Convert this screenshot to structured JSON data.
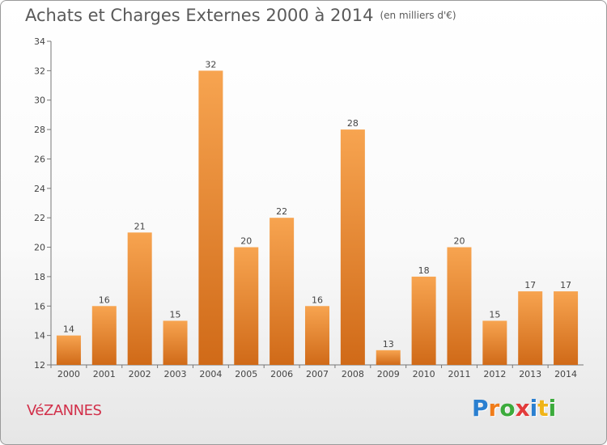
{
  "header": {
    "title": "Achats et Charges Externes 2000 à 2014",
    "unit": "(en milliers d'€)"
  },
  "footer": {
    "town": "VéZANNES",
    "brand_letters": [
      "P",
      "r",
      "o",
      "x",
      "i",
      "t",
      "i"
    ],
    "brand_colors": [
      "#2a7fd0",
      "#f07c1a",
      "#3cab3c",
      "#e23b3b",
      "#2a7fd0",
      "#f0b418",
      "#3cab3c"
    ]
  },
  "chart_data": {
    "type": "bar",
    "categories": [
      "2000",
      "2001",
      "2002",
      "2003",
      "2004",
      "2005",
      "2006",
      "2007",
      "2008",
      "2009",
      "2010",
      "2011",
      "2012",
      "2013",
      "2014"
    ],
    "values": [
      14,
      16,
      21,
      15,
      32,
      20,
      22,
      16,
      28,
      13,
      18,
      20,
      15,
      17,
      17
    ],
    "data_labels": [
      "14",
      "16",
      "21",
      "15",
      "32",
      "20",
      "22",
      "16",
      "28",
      "13",
      "18",
      "20",
      "15",
      "17",
      "17"
    ],
    "yticks": [
      "12",
      "14",
      "16",
      "18",
      "20",
      "22",
      "24",
      "26",
      "28",
      "30",
      "32",
      "34"
    ],
    "ylim": [
      12,
      34
    ],
    "grid": false,
    "bar_color_top": "#f7a450",
    "bar_color_bottom": "#d06a18"
  }
}
